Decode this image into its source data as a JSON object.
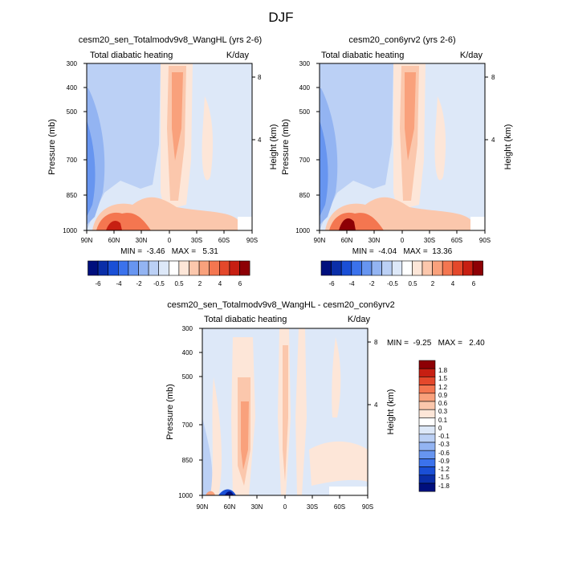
{
  "page_title": "DJF",
  "chart_data": [
    {
      "type": "heatmap",
      "title": "cesm20_sen_Totalmodv9v8_WangHL (yrs 2-6)",
      "left_label": "Total diabatic heating",
      "right_label": "K/day",
      "ylabel": "Pressure (mb)",
      "ylabel_right": "Height (km)",
      "x_ticks": [
        "90N",
        "60N",
        "30N",
        "0",
        "30S",
        "60S",
        "90S"
      ],
      "y_ticks": [
        "300",
        "400",
        "500",
        "700",
        "850",
        "1000"
      ],
      "height_ticks": [
        "8",
        "4"
      ],
      "xlim": [
        90,
        -90
      ],
      "ylim": [
        1000,
        300
      ],
      "stats_text": "MIN =  -3.46   MAX =   5.31",
      "min": -3.46,
      "max": 5.31,
      "colorbar_levels": [
        "-6",
        "-4",
        "-2",
        "-0.5",
        "0.5",
        "2",
        "4",
        "6"
      ]
    },
    {
      "type": "heatmap",
      "title": "cesm20_con6yrv2 (yrs 2-6)",
      "left_label": "Total diabatic heating",
      "right_label": "K/day",
      "ylabel": "Pressure (mb)",
      "ylabel_right": "Height (km)",
      "x_ticks": [
        "90N",
        "60N",
        "30N",
        "0",
        "30S",
        "60S",
        "90S"
      ],
      "y_ticks": [
        "300",
        "400",
        "500",
        "700",
        "850",
        "1000"
      ],
      "height_ticks": [
        "8",
        "4"
      ],
      "xlim": [
        90,
        -90
      ],
      "ylim": [
        1000,
        300
      ],
      "stats_text": "MIN =  -4.04   MAX =  13.36",
      "min": -4.04,
      "max": 13.36,
      "colorbar_levels": [
        "-6",
        "-4",
        "-2",
        "-0.5",
        "0.5",
        "2",
        "4",
        "6"
      ]
    },
    {
      "type": "heatmap",
      "title": "cesm20_sen_Totalmodv9v8_WangHL - cesm20_con6yrv2",
      "left_label": "Total diabatic heating",
      "right_label": "K/day",
      "ylabel": "Pressure (mb)",
      "ylabel_right": "Height (km)",
      "x_ticks": [
        "90N",
        "60N",
        "30N",
        "0",
        "30S",
        "60S",
        "90S"
      ],
      "y_ticks": [
        "300",
        "400",
        "500",
        "700",
        "850",
        "1000"
      ],
      "height_ticks": [
        "8",
        "4"
      ],
      "xlim": [
        90,
        -90
      ],
      "ylim": [
        1000,
        300
      ],
      "stats_text": "MIN =  -9.25   MAX =   2.40",
      "min": -9.25,
      "max": 2.4,
      "colorbar_levels": [
        "1.8",
        "1.5",
        "1.2",
        "0.9",
        "0.6",
        "0.3",
        "0.1",
        "0",
        "-0.1",
        "-0.3",
        "-0.6",
        "-0.9",
        "-1.2",
        "-1.5",
        "-1.8"
      ]
    }
  ],
  "colors": {
    "panel_colorbar": [
      "#000f7d",
      "#0a2ea8",
      "#1a4fd6",
      "#3b72ec",
      "#6795f0",
      "#93b4f2",
      "#bbd0f5",
      "#dde8f8",
      "#ffffff",
      "#fde6d8",
      "#fbc7ac",
      "#f9a17c",
      "#f47650",
      "#e4482b",
      "#c71f12",
      "#8d0005"
    ],
    "diff_colorbar": [
      "#8d0005",
      "#c71f12",
      "#e4482b",
      "#f47650",
      "#f9a17c",
      "#fbc7ac",
      "#fde6d8",
      "#ffffff",
      "#dde8f8",
      "#bbd0f5",
      "#93b4f2",
      "#6795f0",
      "#3b72ec",
      "#1a4fd6",
      "#0a2ea8",
      "#000f7d"
    ],
    "text": "#000000"
  }
}
